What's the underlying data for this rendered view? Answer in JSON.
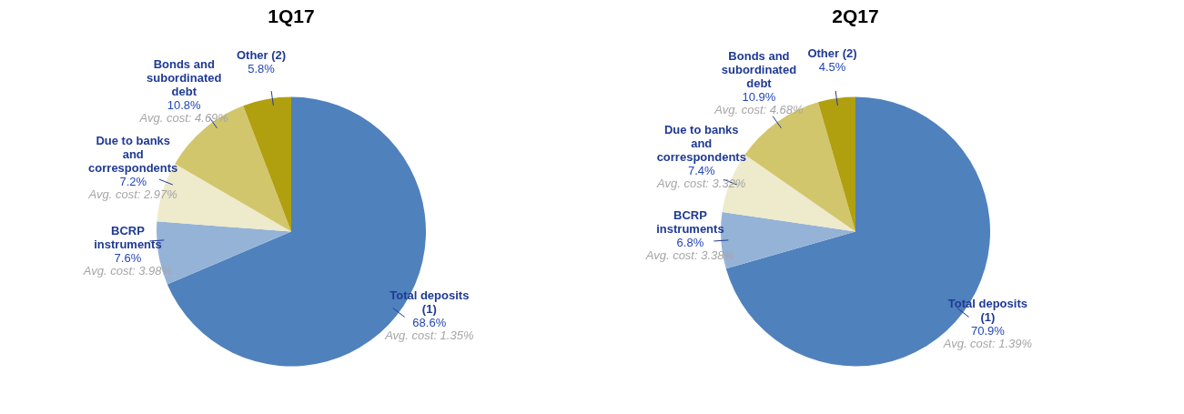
{
  "chart_data": [
    {
      "type": "pie",
      "title": "1Q17",
      "categories": [
        "Total deposits (1)",
        "BCRP instruments",
        "Due to banks and correspondents",
        "Bonds and subordinated debt",
        "Other (2)"
      ],
      "values": [
        68.6,
        7.6,
        7.2,
        10.8,
        5.8
      ],
      "colors": [
        "#4f81bd",
        "#95b3d7",
        "#eeeacc",
        "#d2c66c",
        "#b0a010"
      ],
      "value_labels": [
        "68.6%",
        "7.6%",
        "7.2%",
        "10.8%",
        "5.8%"
      ],
      "annotations": [
        "Avg. cost: 1.35%",
        "Avg. cost: 3.98%",
        "Avg. cost: 2.97%",
        "Avg. cost: 4.69%"
      ]
    },
    {
      "type": "pie",
      "title": "2Q17",
      "categories": [
        "Total deposits (1)",
        "BCRP instruments",
        "Due to banks and correspondents",
        "Bonds and subordinated debt",
        "Other (2)"
      ],
      "values": [
        70.9,
        6.8,
        7.4,
        10.9,
        4.5
      ],
      "colors": [
        "#4f81bd",
        "#95b3d7",
        "#eeeacc",
        "#d2c66c",
        "#b0a010"
      ],
      "value_labels": [
        "70.9%",
        "6.8%",
        "7.4%",
        "10.9%",
        "4.5%"
      ],
      "annotations": [
        "Avg. cost: 1.39%",
        "Avg. cost: 3.38%",
        "Avg. cost: 3.32%",
        "Avg. cost: 4.68%"
      ]
    }
  ]
}
